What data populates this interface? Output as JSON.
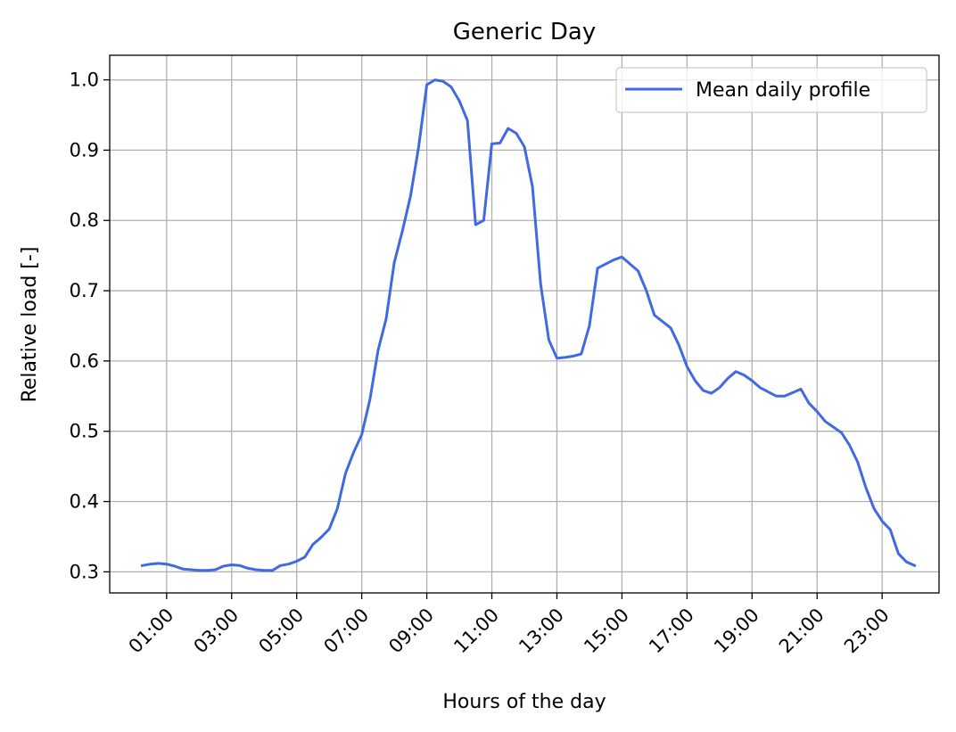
{
  "chart_data": {
    "type": "line",
    "title": "Generic Day",
    "xlabel": "Hours of the day",
    "ylabel": "Relative load [-]",
    "xlim": [
      "23:15",
      "24:45"
    ],
    "ylim": [
      0.27,
      1.035
    ],
    "x_ticks": [
      "01:00",
      "03:00",
      "05:00",
      "07:00",
      "09:00",
      "11:00",
      "13:00",
      "15:00",
      "17:00",
      "19:00",
      "21:00",
      "23:00"
    ],
    "y_ticks": [
      "0.3",
      "0.4",
      "0.5",
      "0.6",
      "0.7",
      "0.8",
      "0.9",
      "1.0"
    ],
    "grid": true,
    "legend_position": "top-right",
    "series": [
      {
        "name": "Mean daily profile",
        "color": "#4169E1",
        "x": [
          "00:15",
          "00:30",
          "00:45",
          "01:00",
          "01:15",
          "01:30",
          "01:45",
          "02:00",
          "02:15",
          "02:30",
          "02:45",
          "03:00",
          "03:15",
          "03:30",
          "03:45",
          "04:00",
          "04:15",
          "04:30",
          "04:45",
          "05:00",
          "05:15",
          "05:30",
          "05:45",
          "06:00",
          "06:15",
          "06:30",
          "06:45",
          "07:00",
          "07:15",
          "07:30",
          "07:45",
          "08:00",
          "08:15",
          "08:30",
          "08:45",
          "09:00",
          "09:15",
          "09:30",
          "09:45",
          "10:00",
          "10:15",
          "10:30",
          "10:45",
          "11:00",
          "11:15",
          "11:30",
          "11:45",
          "12:00",
          "12:15",
          "12:30",
          "12:45",
          "13:00",
          "13:15",
          "13:30",
          "13:45",
          "14:00",
          "14:15",
          "14:30",
          "14:45",
          "15:00",
          "15:15",
          "15:30",
          "15:45",
          "16:00",
          "16:15",
          "16:30",
          "16:45",
          "17:00",
          "17:15",
          "17:30",
          "17:45",
          "18:00",
          "18:15",
          "18:30",
          "18:45",
          "19:00",
          "19:15",
          "19:30",
          "19:45",
          "20:00",
          "20:15",
          "20:30",
          "20:45",
          "21:00",
          "21:15",
          "21:30",
          "21:45",
          "22:00",
          "22:15",
          "22:30",
          "22:45",
          "23:00",
          "23:15",
          "23:30",
          "23:45",
          "24:00"
        ],
        "y": [
          0.309,
          0.311,
          0.312,
          0.311,
          0.308,
          0.304,
          0.303,
          0.302,
          0.302,
          0.303,
          0.308,
          0.31,
          0.309,
          0.305,
          0.303,
          0.302,
          0.302,
          0.309,
          0.311,
          0.315,
          0.321,
          0.339,
          0.349,
          0.361,
          0.39,
          0.44,
          0.47,
          0.495,
          0.545,
          0.615,
          0.66,
          0.74,
          0.785,
          0.835,
          0.905,
          0.993,
          1.0,
          0.998,
          0.99,
          0.97,
          0.942,
          0.794,
          0.8,
          0.909,
          0.91,
          0.931,
          0.924,
          0.905,
          0.848,
          0.71,
          0.63,
          0.604,
          0.605,
          0.607,
          0.61,
          0.65,
          0.732,
          0.738,
          0.744,
          0.748,
          0.738,
          0.728,
          0.7,
          0.665,
          0.656,
          0.647,
          0.623,
          0.592,
          0.572,
          0.558,
          0.554,
          0.562,
          0.575,
          0.585,
          0.58,
          0.572,
          0.562,
          0.556,
          0.55,
          0.55,
          0.555,
          0.56,
          0.54,
          0.528,
          0.514,
          0.506,
          0.498,
          0.48,
          0.456,
          0.42,
          0.39,
          0.372,
          0.36,
          0.326,
          0.314,
          0.309
        ]
      }
    ]
  }
}
